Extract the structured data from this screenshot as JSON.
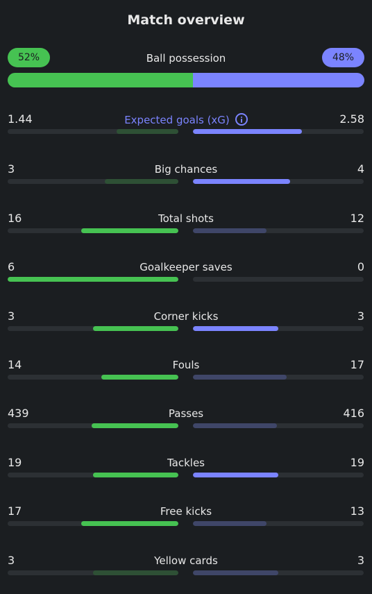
{
  "header": {
    "title": "Match overview"
  },
  "possession": {
    "label": "Ball possession",
    "home": "52%",
    "away": "48%",
    "home_fraction": 0.52
  },
  "stats": [
    {
      "label": "Expected goals (xG)",
      "home": "1.44",
      "away": "2.58",
      "home_fill": 0.36,
      "away_fill": 0.64,
      "home_strong": false,
      "away_strong": true,
      "info": true
    },
    {
      "label": "Big chances",
      "home": "3",
      "away": "4",
      "home_fill": 0.43,
      "away_fill": 0.57,
      "home_strong": false,
      "away_strong": true
    },
    {
      "label": "Total shots",
      "home": "16",
      "away": "12",
      "home_fill": 0.57,
      "away_fill": 0.43,
      "home_strong": true,
      "away_strong": false
    },
    {
      "label": "Goalkeeper saves",
      "home": "6",
      "away": "0",
      "home_fill": 1.0,
      "away_fill": 0.0,
      "home_strong": true,
      "away_strong": false
    },
    {
      "label": "Corner kicks",
      "home": "3",
      "away": "3",
      "home_fill": 0.5,
      "away_fill": 0.5,
      "home_strong": true,
      "away_strong": true
    },
    {
      "label": "Fouls",
      "home": "14",
      "away": "17",
      "home_fill": 0.45,
      "away_fill": 0.55,
      "home_strong": true,
      "away_strong": false
    },
    {
      "label": "Passes",
      "home": "439",
      "away": "416",
      "home_fill": 0.51,
      "away_fill": 0.49,
      "home_strong": true,
      "away_strong": false
    },
    {
      "label": "Tackles",
      "home": "19",
      "away": "19",
      "home_fill": 0.5,
      "away_fill": 0.5,
      "home_strong": true,
      "away_strong": true
    },
    {
      "label": "Free kicks",
      "home": "17",
      "away": "13",
      "home_fill": 0.57,
      "away_fill": 0.43,
      "home_strong": true,
      "away_strong": false
    },
    {
      "label": "Yellow cards",
      "home": "3",
      "away": "3",
      "home_fill": 0.5,
      "away_fill": 0.5,
      "home_strong": false,
      "away_strong": false
    }
  ]
}
